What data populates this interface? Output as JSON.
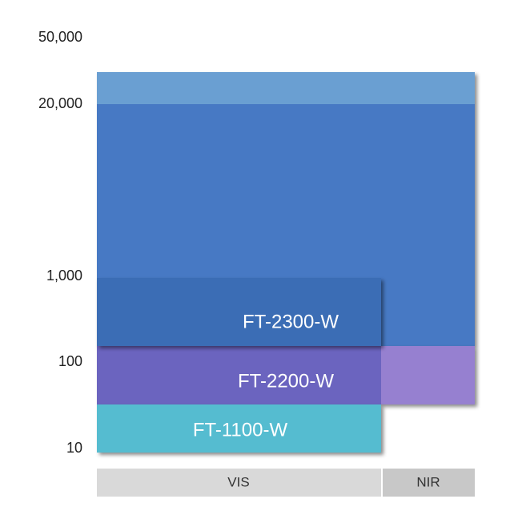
{
  "y_axis": {
    "labels": [
      "50,000",
      "20,000",
      "1,000",
      "100",
      "10"
    ]
  },
  "products": [
    {
      "label": "FT-2300-W"
    },
    {
      "label": "FT-2200-W"
    },
    {
      "label": "FT-1100-W"
    }
  ],
  "x_axis": {
    "labels": [
      "VIS",
      "NIR"
    ]
  }
}
